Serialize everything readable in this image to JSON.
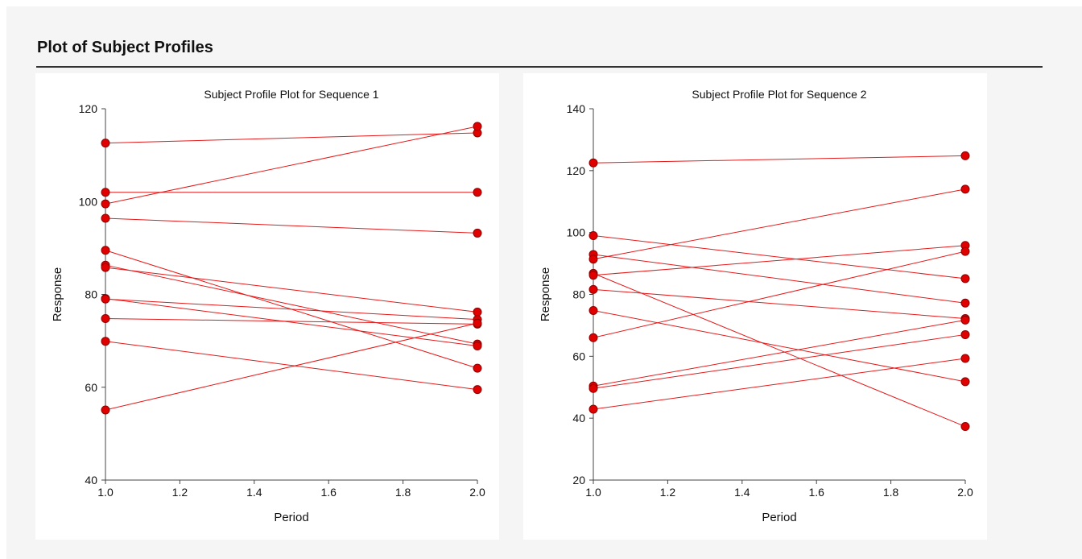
{
  "report": {
    "title": "Plot of Subject Profiles"
  },
  "colors": {
    "series_line": "#e41a1a",
    "marker_fill": "#e00000",
    "marker_stroke": "#8b0000",
    "axis": "#444444",
    "panel_bg": "#ffffff",
    "page_bg": "#f5f5f5"
  },
  "chart_data": [
    {
      "type": "line",
      "title": "Subject Profile Plot for Sequence 1",
      "xlabel": "Period",
      "ylabel": "Response",
      "xlim": [
        1.0,
        2.0
      ],
      "ylim": [
        40,
        120
      ],
      "xticks": [
        "1.0",
        "1.2",
        "1.4",
        "1.6",
        "1.8",
        "2.0"
      ],
      "yticks": [
        "40",
        "60",
        "80",
        "100",
        "120"
      ],
      "grid": false,
      "legend": "none",
      "x": [
        1.0,
        2.0
      ],
      "series": [
        {
          "values": [
            112.6,
            114.8
          ]
        },
        {
          "values": [
            102.0,
            102.0
          ]
        },
        {
          "values": [
            99.5,
            116.2
          ]
        },
        {
          "values": [
            96.4,
            93.2
          ]
        },
        {
          "values": [
            89.5,
            64.1
          ]
        },
        {
          "values": [
            86.3,
            69.3
          ]
        },
        {
          "values": [
            85.8,
            76.2
          ]
        },
        {
          "values": [
            79.1,
            68.9
          ]
        },
        {
          "values": [
            79.0,
            74.6
          ]
        },
        {
          "values": [
            74.8,
            73.6
          ]
        },
        {
          "values": [
            69.9,
            59.5
          ]
        },
        {
          "values": [
            55.1,
            73.8
          ]
        }
      ]
    },
    {
      "type": "line",
      "title": "Subject Profile Plot for Sequence 2",
      "xlabel": "Period",
      "ylabel": "Response",
      "xlim": [
        1.0,
        2.0
      ],
      "ylim": [
        20,
        140
      ],
      "xticks": [
        "1.0",
        "1.2",
        "1.4",
        "1.6",
        "1.8",
        "2.0"
      ],
      "yticks": [
        "20",
        "40",
        "60",
        "80",
        "100",
        "120",
        "140"
      ],
      "grid": false,
      "legend": "none",
      "x": [
        1.0,
        2.0
      ],
      "series": [
        {
          "values": [
            122.5,
            124.8
          ]
        },
        {
          "values": [
            99.0,
            85.1
          ]
        },
        {
          "values": [
            92.9,
            77.2
          ]
        },
        {
          "values": [
            91.4,
            114.0
          ]
        },
        {
          "values": [
            86.8,
            37.3
          ]
        },
        {
          "values": [
            86.2,
            95.8
          ]
        },
        {
          "values": [
            81.6,
            72.2
          ]
        },
        {
          "values": [
            74.8,
            51.8
          ]
        },
        {
          "values": [
            66.0,
            93.9
          ]
        },
        {
          "values": [
            50.4,
            71.7
          ]
        },
        {
          "values": [
            49.6,
            67.0
          ]
        },
        {
          "values": [
            42.9,
            59.3
          ]
        }
      ]
    }
  ]
}
